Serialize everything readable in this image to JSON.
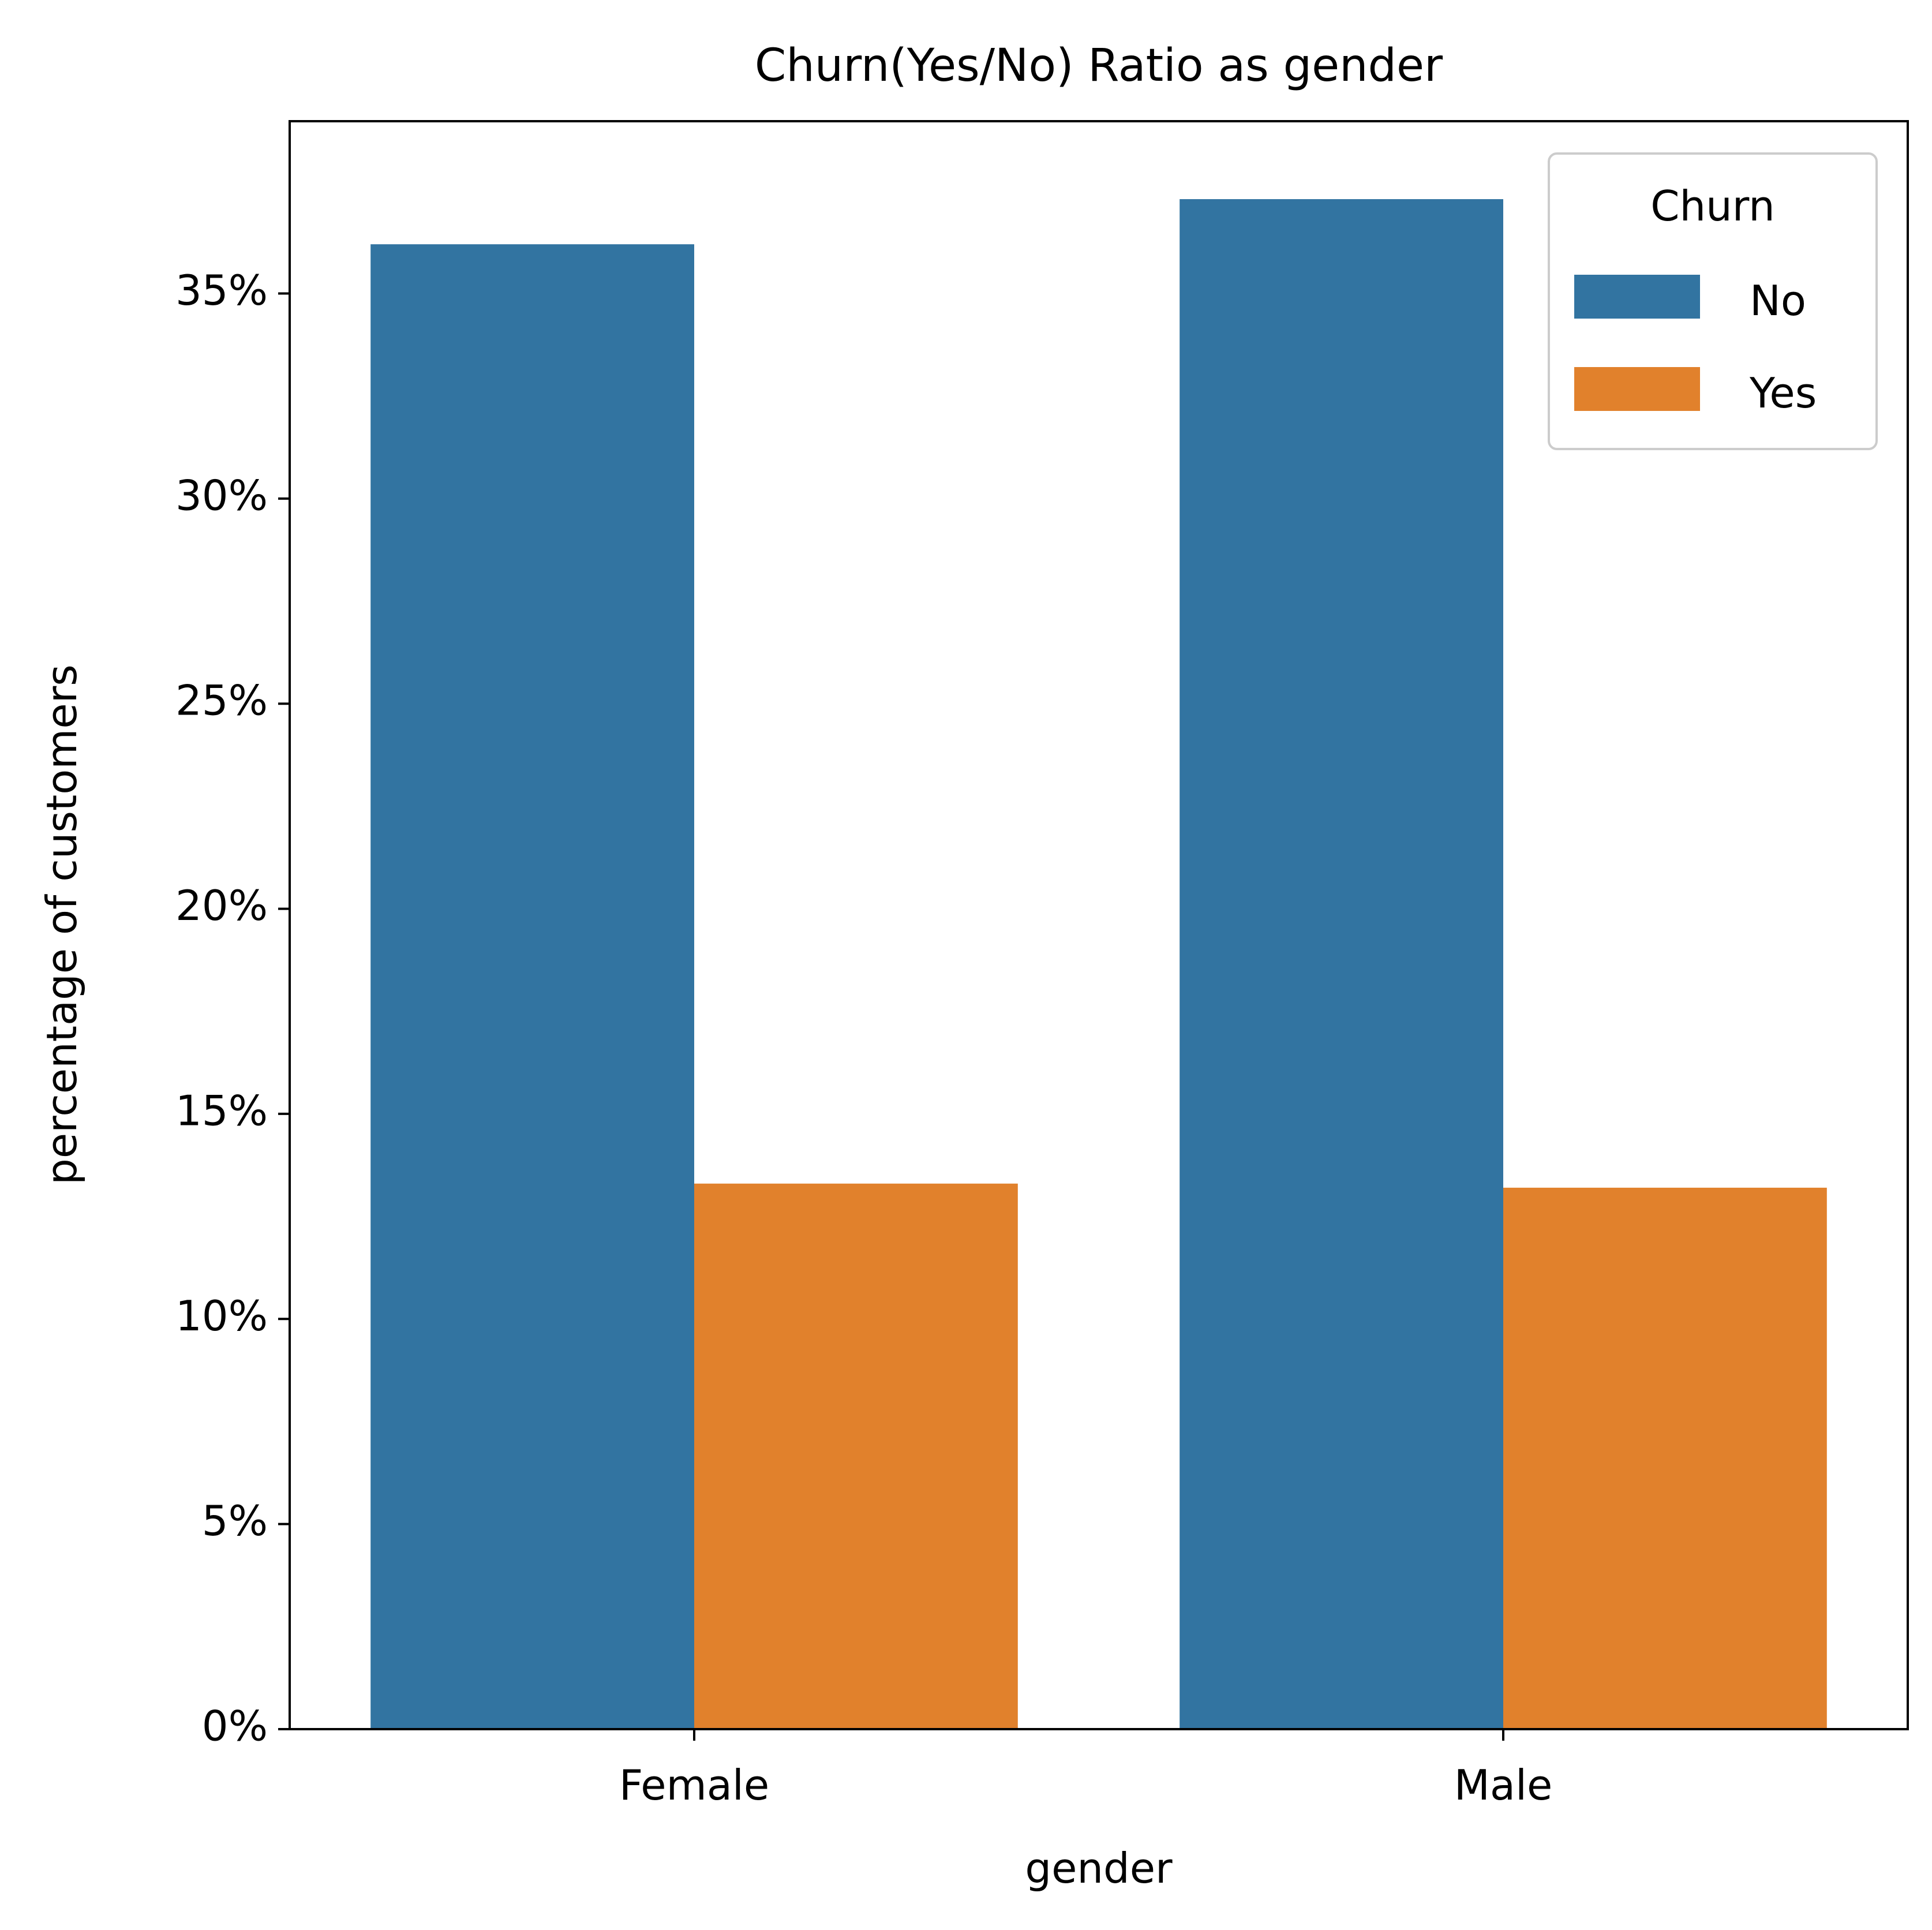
{
  "chart_data": {
    "type": "bar",
    "title": "Churn(Yes/No) Ratio as gender",
    "xlabel": "gender",
    "ylabel": "percentage of customers",
    "categories": [
      "Female",
      "Male"
    ],
    "series": [
      {
        "name": "No",
        "values": [
          36.2,
          37.3
        ],
        "color": "#3274a1"
      },
      {
        "name": "Yes",
        "values": [
          13.3,
          13.2
        ],
        "color": "#e1812c"
      }
    ],
    "ylim": [
      0,
      39.2
    ],
    "yticks": [
      0,
      5,
      10,
      15,
      20,
      25,
      30,
      35
    ],
    "ytick_labels": [
      "0%",
      "5%",
      "10%",
      "15%",
      "20%",
      "25%",
      "30%",
      "35%"
    ],
    "legend": {
      "title": "Churn",
      "placement": "top-right"
    },
    "grid": false
  }
}
